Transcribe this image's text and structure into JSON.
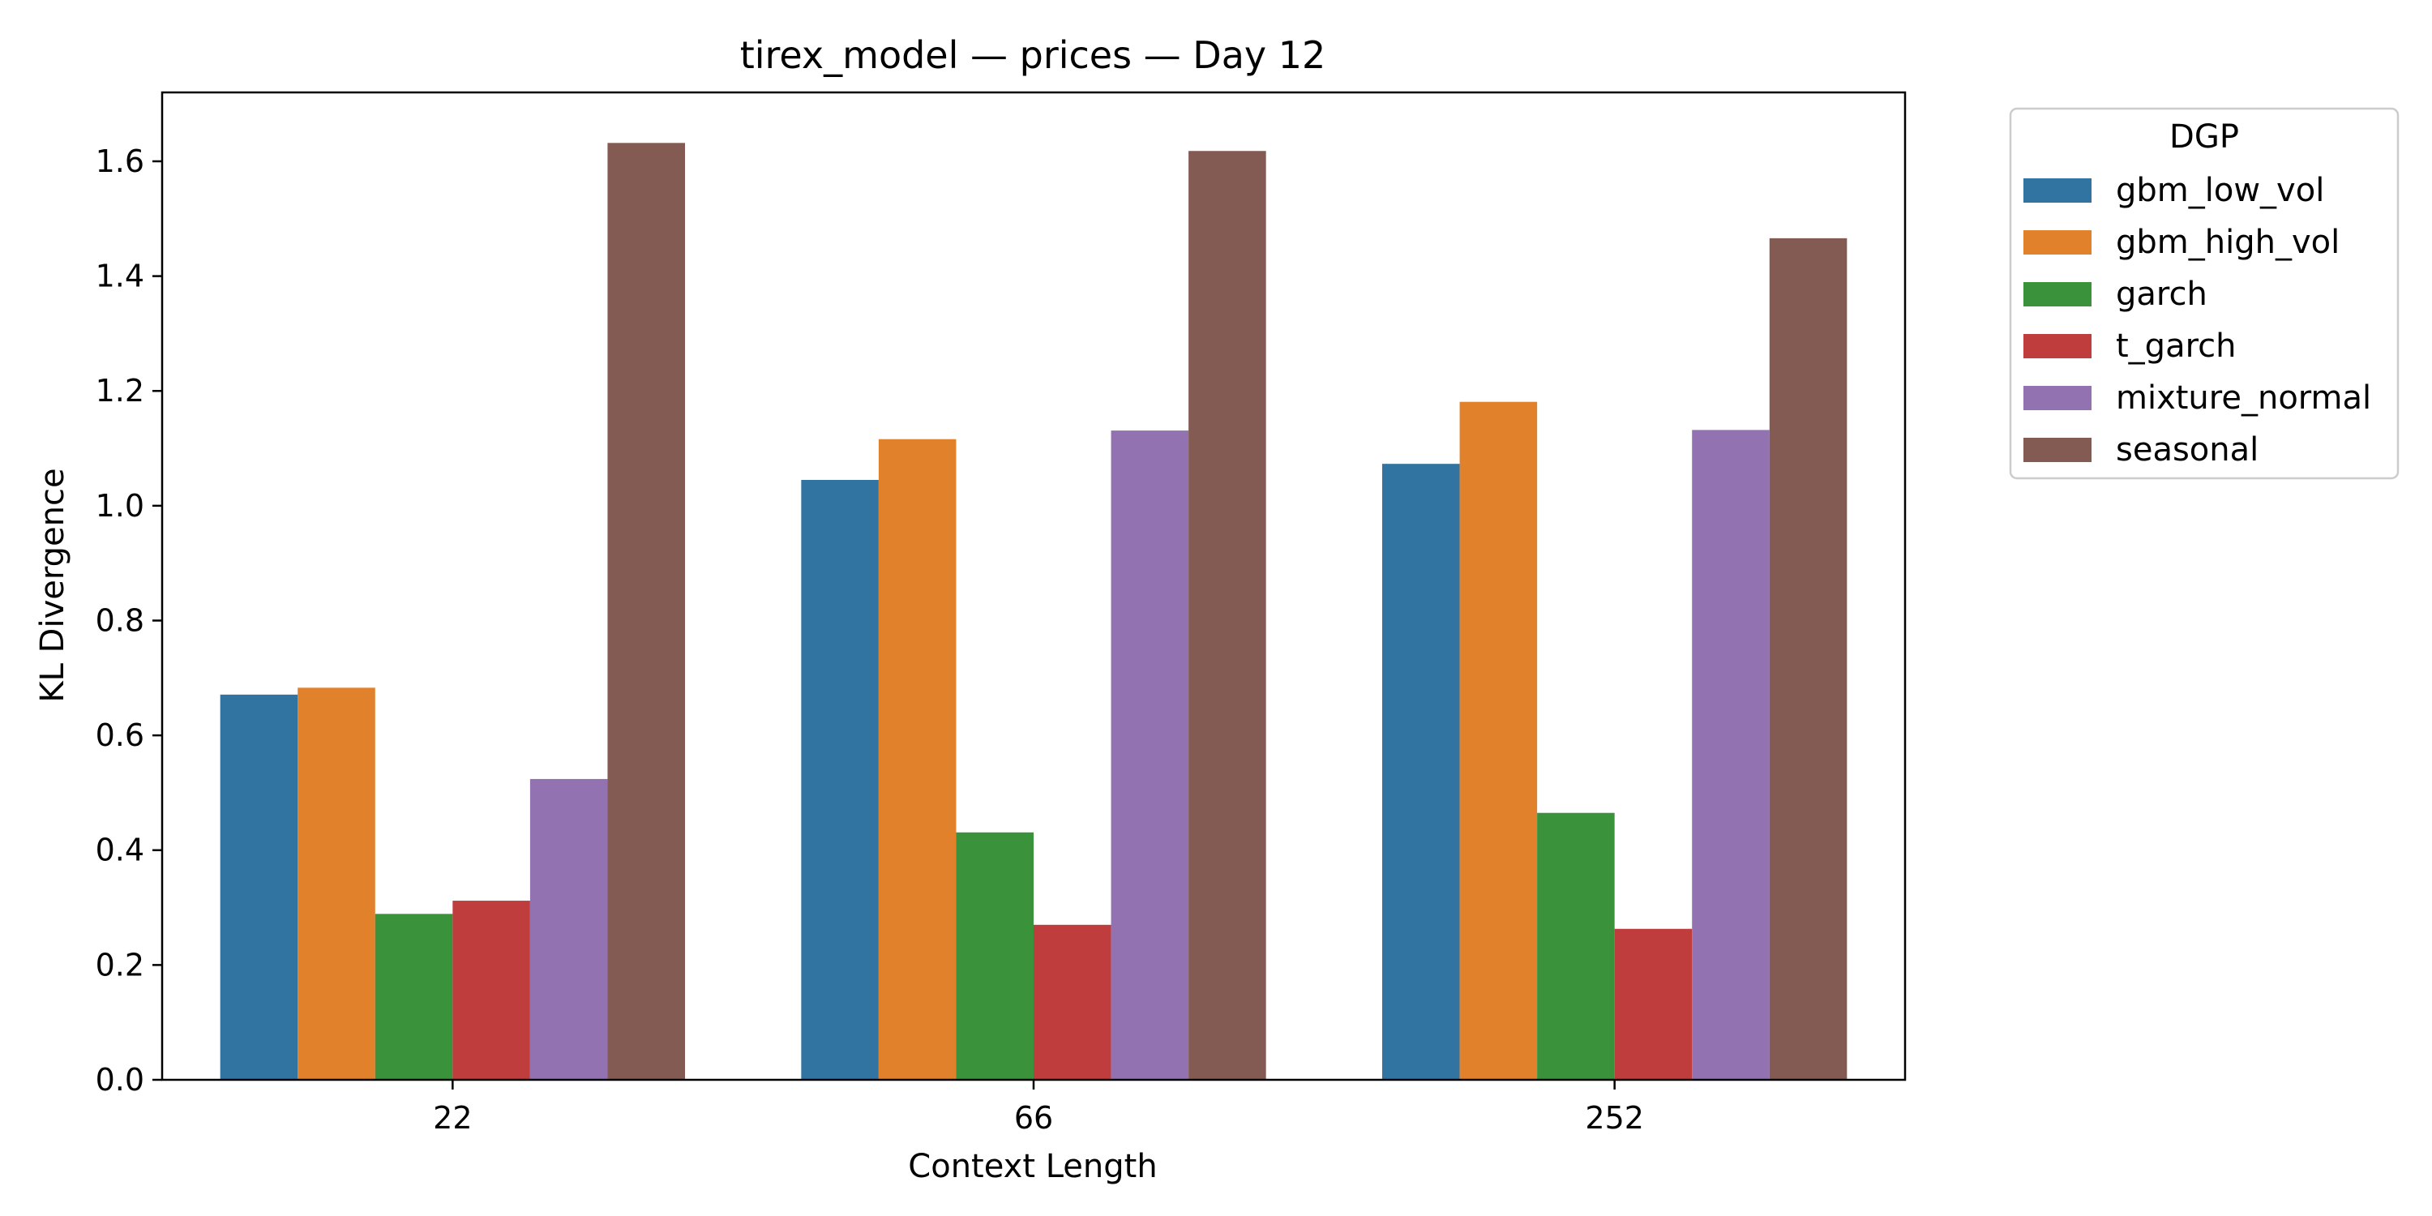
{
  "chart_data": {
    "type": "bar",
    "title": "tirex_model — prices — Day 12",
    "xlabel": "Context Length",
    "ylabel": "KL Divergence",
    "categories": [
      "22",
      "66",
      "252"
    ],
    "ylim": [
      0,
      1.72
    ],
    "yticks": [
      "0.0",
      "0.2",
      "0.4",
      "0.6",
      "0.8",
      "1.0",
      "1.2",
      "1.4",
      "1.6"
    ],
    "grid": false,
    "legend": {
      "title": "DGP",
      "placement": "outside-top-right"
    },
    "series": [
      {
        "name": "gbm_low_vol",
        "color": "#3274a1",
        "values": [
          0.671,
          1.045,
          1.073
        ]
      },
      {
        "name": "gbm_high_vol",
        "color": "#e1812c",
        "values": [
          0.683,
          1.116,
          1.181
        ]
      },
      {
        "name": "garch",
        "color": "#3a923a",
        "values": [
          0.289,
          0.431,
          0.465
        ]
      },
      {
        "name": "t_garch",
        "color": "#c03d3e",
        "values": [
          0.312,
          0.27,
          0.263
        ]
      },
      {
        "name": "mixture_normal",
        "color": "#9372b2",
        "values": [
          0.524,
          1.131,
          1.132
        ]
      },
      {
        "name": "seasonal",
        "color": "#845b53",
        "values": [
          1.632,
          1.618,
          1.466
        ]
      }
    ]
  }
}
